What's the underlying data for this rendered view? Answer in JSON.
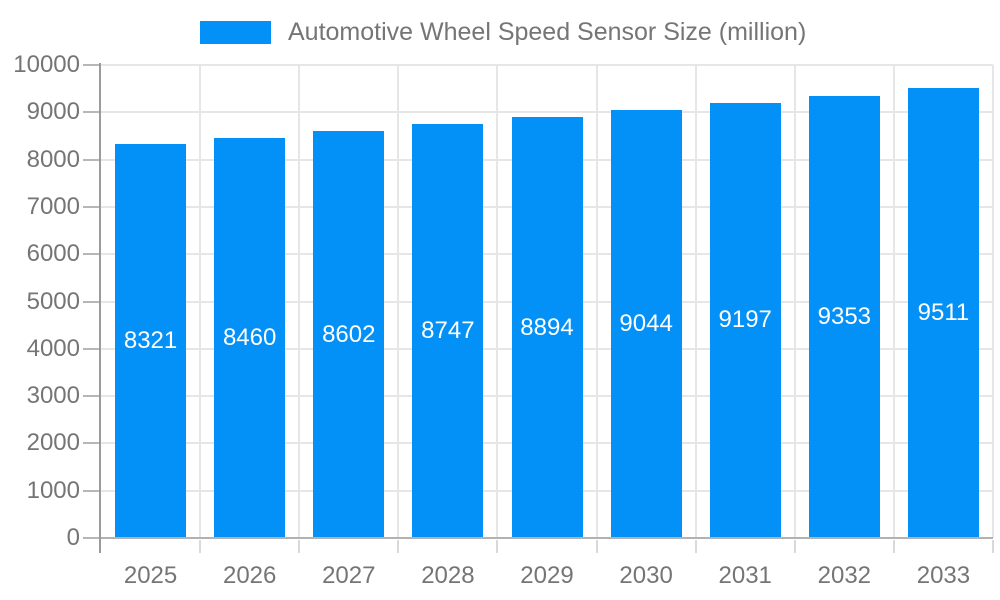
{
  "chart_data": {
    "type": "bar",
    "title": "Automotive Wheel Speed Sensor Size (million)",
    "categories": [
      "2025",
      "2026",
      "2027",
      "2028",
      "2029",
      "2030",
      "2031",
      "2032",
      "2033"
    ],
    "series": [
      {
        "name": "Automotive Wheel Speed Sensor Size (million)",
        "values": [
          8321,
          8460,
          8602,
          8747,
          8894,
          9044,
          9197,
          9353,
          9511
        ]
      }
    ],
    "data_labels": [
      "8321",
      "8460",
      "8602",
      "8747",
      "8894",
      "9044",
      "9197",
      "9353",
      "9511"
    ],
    "xlabel": "",
    "ylabel": "",
    "ylim": [
      0,
      10000
    ],
    "ytick_interval": 1000,
    "ytick_labels": [
      "0",
      "1000",
      "2000",
      "3000",
      "4000",
      "5000",
      "6000",
      "7000",
      "8000",
      "9000",
      "10000"
    ],
    "grid": "on",
    "legend_position": "top"
  },
  "legend": {
    "label": "Automotive Wheel Speed Sensor Size (million)"
  },
  "colors": {
    "bar_fill": "#0390f7",
    "bar_value_text": "#ffffff",
    "axis_label_text": "#757575",
    "legend_text": "#757575",
    "gridline": "#e6e6e6",
    "y_axis_line": "#9b9b9b",
    "x_axis_line": "#b2b2b2",
    "background": "#ffffff"
  }
}
